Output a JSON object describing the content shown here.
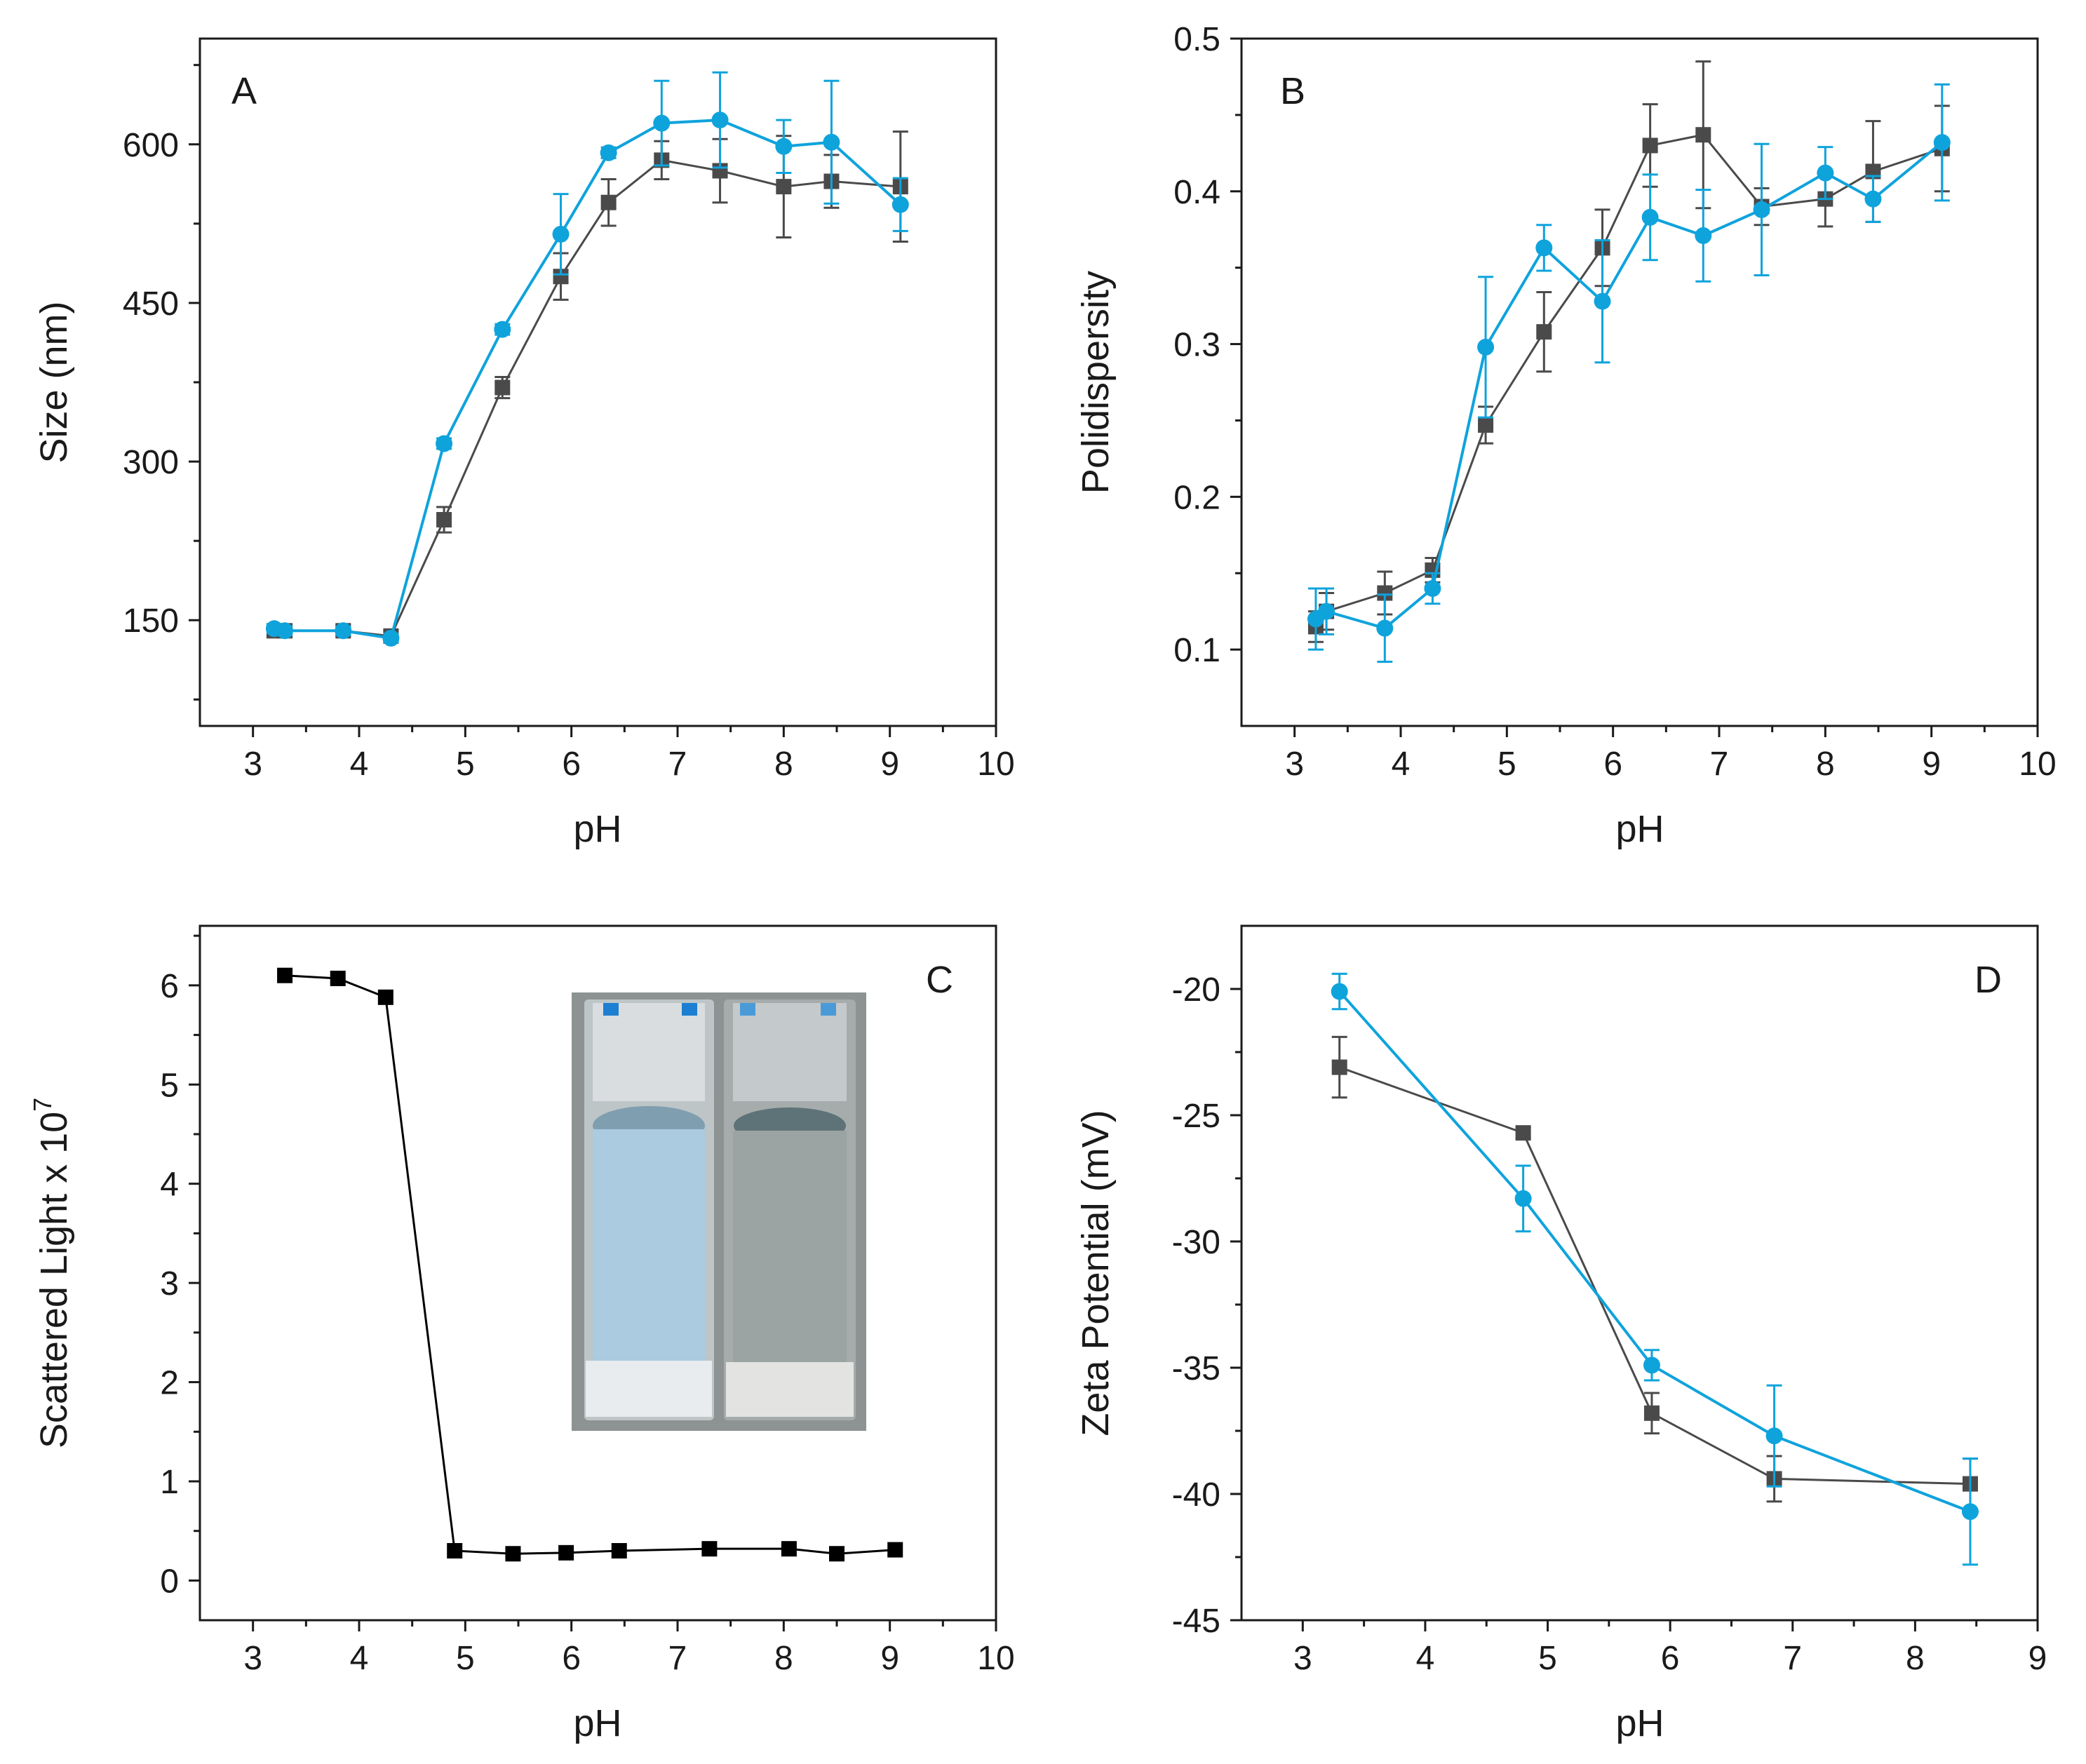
{
  "figure": {
    "colors": {
      "gray": "#4a4a4a",
      "blue": "#0fa3dc",
      "black": "#000000"
    }
  },
  "chart_data": [
    {
      "panel": "A",
      "type": "line",
      "xlabel": "pH",
      "ylabel": "Size (nm)",
      "xlim": [
        2.5,
        10
      ],
      "ylim": [
        50,
        700
      ],
      "xticks": [
        3,
        4,
        5,
        6,
        7,
        8,
        9,
        10
      ],
      "xtick_labels": [
        "3",
        "4",
        "5",
        "6",
        "7",
        "8",
        "9",
        "10"
      ],
      "yticks": [
        150,
        300,
        450,
        600
      ],
      "ytick_labels": [
        "150",
        "300",
        "450",
        "600"
      ],
      "series": [
        {
          "name": "gray squares",
          "marker": "square",
          "color": "#4a4a4a",
          "x": [
            3.2,
            3.3,
            3.85,
            4.3,
            4.8,
            5.35,
            5.9,
            6.35,
            6.85,
            7.4,
            8.0,
            8.45,
            9.1
          ],
          "y": [
            140,
            140,
            140,
            135,
            245,
            370,
            475,
            545,
            585,
            575,
            560,
            565,
            560
          ],
          "err": [
            5,
            5,
            5,
            5,
            12,
            10,
            22,
            22,
            18,
            30,
            48,
            25,
            52
          ]
        },
        {
          "name": "blue circles",
          "marker": "circle",
          "color": "#0fa3dc",
          "x": [
            3.2,
            3.3,
            3.85,
            4.3,
            4.8,
            5.35,
            5.9,
            6.35,
            6.85,
            7.4,
            8.0,
            8.45,
            9.1
          ],
          "y": [
            142,
            140,
            140,
            133,
            317,
            425,
            515,
            592,
            620,
            623,
            598,
            602,
            543
          ],
          "err": [
            4,
            4,
            4,
            4,
            5,
            5,
            38,
            5,
            40,
            45,
            25,
            58,
            25
          ]
        }
      ]
    },
    {
      "panel": "B",
      "type": "line",
      "xlabel": "pH",
      "ylabel": "Polidispersity",
      "xlim": [
        2.5,
        10
      ],
      "ylim": [
        0.05,
        0.5
      ],
      "xticks": [
        3,
        4,
        5,
        6,
        7,
        8,
        9,
        10
      ],
      "xtick_labels": [
        "3",
        "4",
        "5",
        "6",
        "7",
        "8",
        "9",
        "10"
      ],
      "yticks": [
        0.1,
        0.2,
        0.3,
        0.4,
        0.5
      ],
      "ytick_labels": [
        "0.1",
        "0.2",
        "0.3",
        "0.4",
        "0.5"
      ],
      "series": [
        {
          "name": "gray squares",
          "marker": "square",
          "color": "#4a4a4a",
          "x": [
            3.2,
            3.3,
            3.85,
            4.3,
            4.8,
            5.35,
            5.9,
            6.35,
            6.85,
            7.4,
            8.0,
            8.45,
            9.1
          ],
          "y": [
            0.115,
            0.125,
            0.137,
            0.152,
            0.247,
            0.308,
            0.363,
            0.43,
            0.437,
            0.39,
            0.395,
            0.413,
            0.428
          ],
          "err": [
            0.01,
            0.012,
            0.014,
            0.008,
            0.012,
            0.026,
            0.025,
            0.027,
            0.048,
            0.012,
            0.018,
            0.033,
            0.028
          ]
        },
        {
          "name": "blue circles",
          "marker": "circle",
          "color": "#0fa3dc",
          "x": [
            3.2,
            3.3,
            3.85,
            4.3,
            4.8,
            5.35,
            5.9,
            6.35,
            6.85,
            7.4,
            8.0,
            8.45,
            9.1
          ],
          "y": [
            0.12,
            0.125,
            0.114,
            0.14,
            0.298,
            0.363,
            0.328,
            0.383,
            0.371,
            0.388,
            0.412,
            0.395,
            0.432
          ],
          "err": [
            0.02,
            0.015,
            0.022,
            0.01,
            0.046,
            0.015,
            0.04,
            0.028,
            0.03,
            0.043,
            0.017,
            0.015,
            0.038
          ]
        }
      ]
    },
    {
      "panel": "C",
      "type": "line",
      "xlabel": "pH",
      "ylabel": "Scattered Light x 10",
      "ylabel_exponent": "7",
      "xlim": [
        2.5,
        10
      ],
      "ylim": [
        -0.4,
        6.6
      ],
      "xticks": [
        3,
        4,
        5,
        6,
        7,
        8,
        9,
        10
      ],
      "xtick_labels": [
        "3",
        "4",
        "5",
        "6",
        "7",
        "8",
        "9",
        "10"
      ],
      "yticks": [
        0,
        1,
        2,
        3,
        4,
        5,
        6
      ],
      "ytick_labels": [
        "0",
        "1",
        "2",
        "3",
        "4",
        "5",
        "6"
      ],
      "inset": "photo of two cuvettes: left cloudy blue, right clear",
      "series": [
        {
          "name": "scattered light",
          "marker": "square",
          "color": "#000000",
          "x": [
            3.3,
            3.8,
            4.25,
            4.9,
            5.45,
            5.95,
            6.45,
            7.3,
            8.05,
            8.5,
            9.05
          ],
          "y": [
            6.1,
            6.07,
            5.88,
            0.3,
            0.27,
            0.28,
            0.3,
            0.32,
            0.32,
            0.27,
            0.31
          ]
        }
      ]
    },
    {
      "panel": "D",
      "type": "line",
      "xlabel": "pH",
      "ylabel": "Zeta Potential (mV)",
      "xlim": [
        2.5,
        9
      ],
      "ylim": [
        -45,
        -17.5
      ],
      "xticks": [
        3,
        4,
        5,
        6,
        7,
        8,
        9
      ],
      "xtick_labels": [
        "3",
        "4",
        "5",
        "6",
        "7",
        "8",
        "9"
      ],
      "yticks": [
        -20,
        -25,
        -30,
        -35,
        -40,
        -45
      ],
      "ytick_labels": [
        "-20",
        "-25",
        "-30",
        "-35",
        "-40",
        "-45"
      ],
      "series": [
        {
          "name": "gray squares",
          "marker": "square",
          "color": "#4a4a4a",
          "x": [
            3.3,
            4.8,
            5.85,
            6.85,
            8.45
          ],
          "y": [
            -23.1,
            -25.7,
            -36.8,
            -39.4,
            -39.6
          ],
          "err": [
            1.2,
            0.2,
            0.8,
            0.9,
            1.0
          ]
        },
        {
          "name": "blue circles",
          "marker": "circle",
          "color": "#0fa3dc",
          "x": [
            3.3,
            4.8,
            5.85,
            6.85,
            8.45
          ],
          "y": [
            -20.1,
            -28.3,
            -34.9,
            -37.7,
            -40.7
          ],
          "err": [
            0.7,
            1.3,
            0.6,
            2.0,
            2.1
          ]
        }
      ]
    }
  ]
}
